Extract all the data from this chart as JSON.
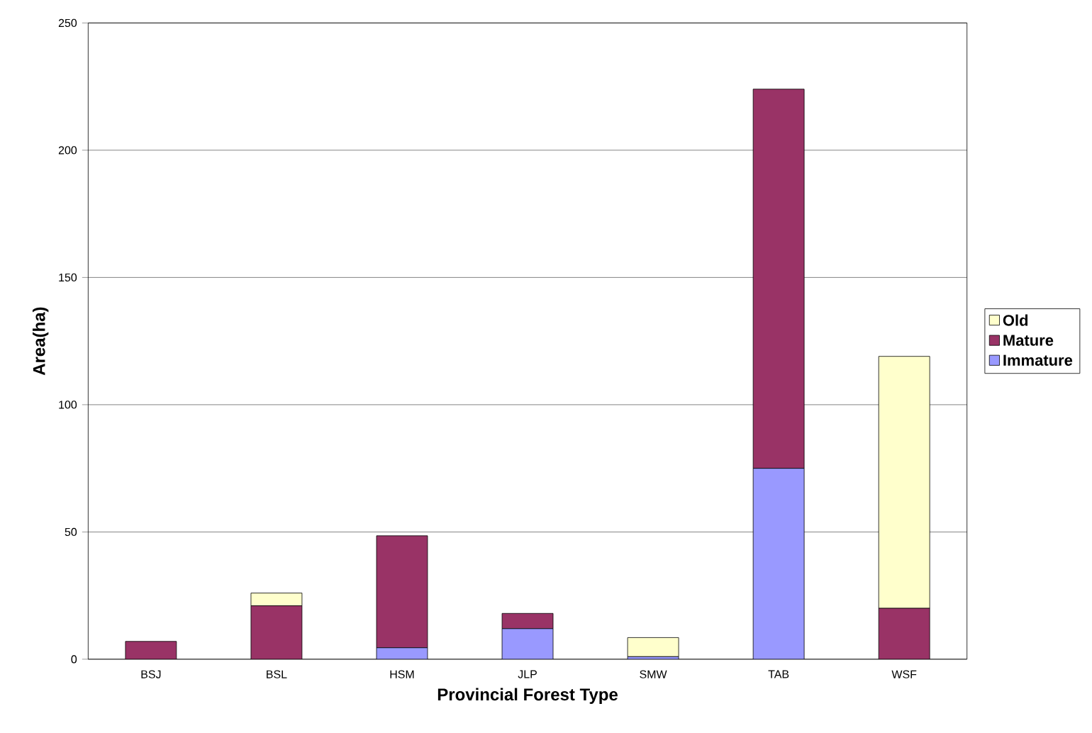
{
  "chart_data": {
    "type": "bar",
    "stacked": true,
    "xlabel": "Provincial Forest Type",
    "ylabel": "Area(ha)",
    "categories": [
      "BSJ",
      "BSL",
      "HSM",
      "JLP",
      "SMW",
      "TAB",
      "WSF"
    ],
    "series": [
      {
        "name": "Immature",
        "color": "#9999ff",
        "values": [
          0,
          0,
          4.5,
          12,
          1,
          75,
          0
        ]
      },
      {
        "name": "Mature",
        "color": "#993366",
        "values": [
          7,
          21,
          44,
          6,
          0,
          149,
          20
        ]
      },
      {
        "name": "Old",
        "color": "#ffffcc",
        "values": [
          0,
          5,
          0,
          0,
          7.5,
          0,
          99
        ]
      }
    ],
    "ylim": [
      0,
      250
    ],
    "yticks": [
      0,
      50,
      100,
      150,
      200,
      250
    ],
    "grid": "y",
    "legend": "right"
  }
}
